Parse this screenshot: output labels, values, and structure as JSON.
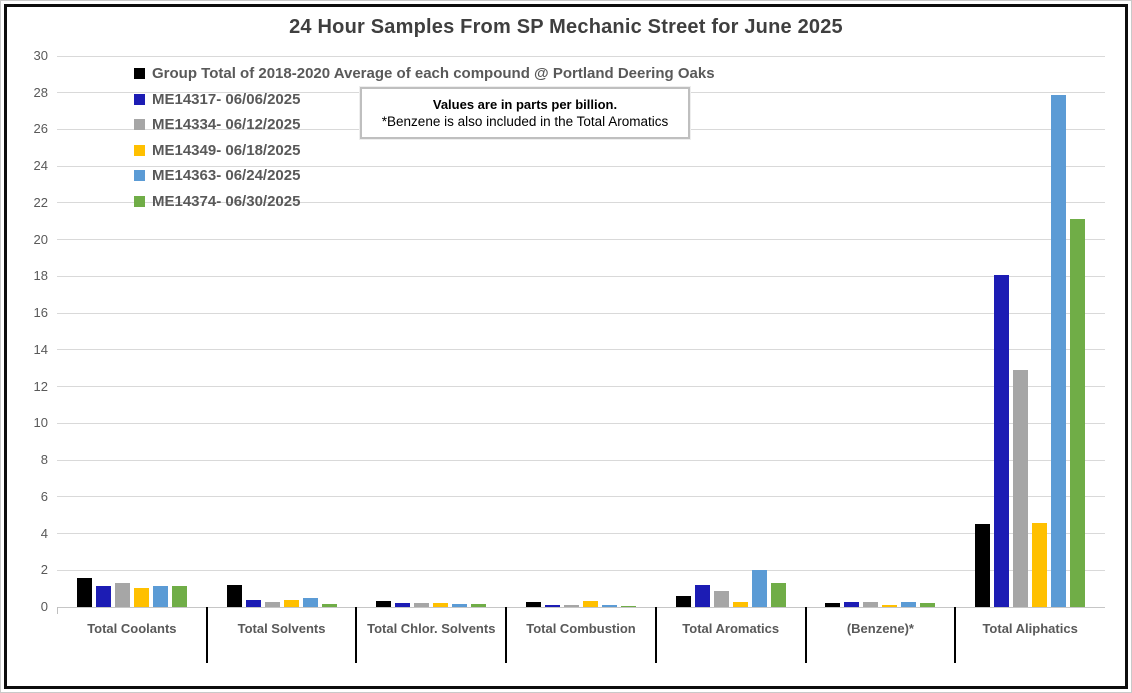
{
  "chart_data": {
    "type": "bar",
    "title": "24 Hour Samples From SP Mechanic Street for June 2025",
    "note": {
      "line1": "Values are in parts per billion.",
      "line2": "*Benzene is also included in the Total Aromatics"
    },
    "units": "parts per billion",
    "categories": [
      "Total Coolants",
      "Total Solvents",
      "Total Chlor. Solvents",
      "Total Combustion",
      "Total Aromatics",
      "(Benzene)*",
      "Total Aliphatics"
    ],
    "series": [
      {
        "name": "Group Total of 2018-2020 Average of each compound @ Portland Deering Oaks",
        "color": "#000000",
        "values": [
          1.6,
          1.2,
          0.35,
          0.3,
          0.6,
          0.2,
          4.5
        ]
      },
      {
        "name": "ME14317- 06/06/2025",
        "color": "#1c1cb4",
        "values": [
          1.15,
          0.4,
          0.2,
          0.1,
          1.2,
          0.25,
          18.1
        ]
      },
      {
        "name": "ME14334- 06/12/2025",
        "color": "#a6a6a6",
        "values": [
          1.3,
          0.3,
          0.2,
          0.1,
          0.85,
          0.25,
          12.9
        ]
      },
      {
        "name": "ME14349- 06/18/2025",
        "color": "#ffc000",
        "values": [
          1.05,
          0.4,
          0.2,
          0.35,
          0.3,
          0.1,
          4.6
        ]
      },
      {
        "name": "ME14363- 06/24/2025",
        "color": "#5b9bd5",
        "values": [
          1.15,
          0.5,
          0.15,
          0.1,
          2.0,
          0.25,
          27.9
        ]
      },
      {
        "name": "ME14374- 06/30/2025",
        "color": "#70ad47",
        "values": [
          1.15,
          0.15,
          0.15,
          0.02,
          1.3,
          0.2,
          21.1
        ]
      }
    ],
    "ylim": [
      0,
      30
    ],
    "ytick_step": 2,
    "grid": true,
    "legend_position": "top-left",
    "xlabel": "",
    "ylabel": ""
  },
  "colors": {
    "gridline": "#d9d9d9",
    "axis_text": "#595959",
    "title_text": "#3f3f3f",
    "category_separator": "#000000",
    "frame_border": "#0d0d0d"
  }
}
